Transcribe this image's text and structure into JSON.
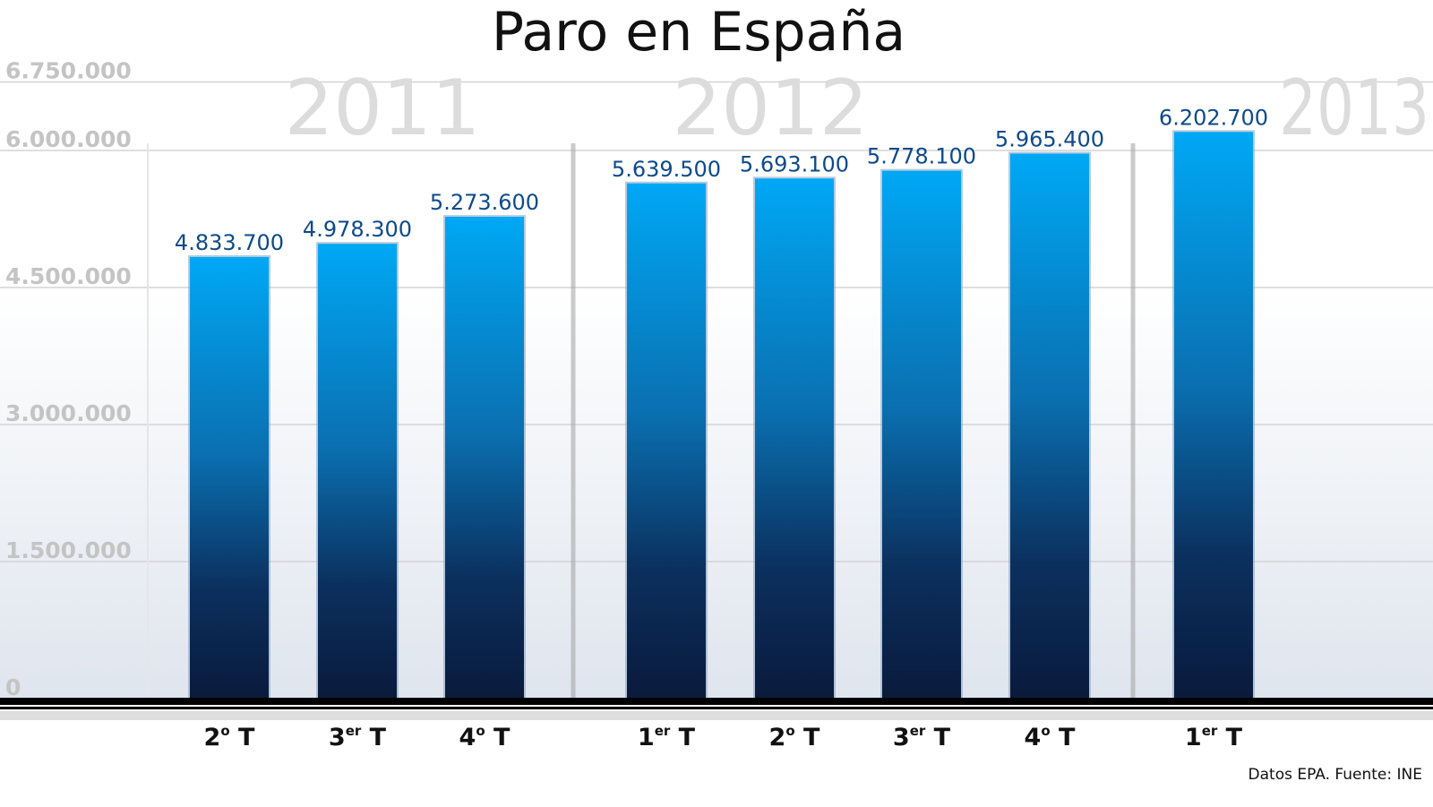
{
  "chart_data": {
    "type": "bar",
    "title": "Paro en España",
    "categories": [
      {
        "main": "2",
        "sup": "o",
        "suffix": " T"
      },
      {
        "main": "3",
        "sup": "er",
        "suffix": " T"
      },
      {
        "main": "4",
        "sup": "o",
        "suffix": " T"
      },
      {
        "main": "1",
        "sup": "er",
        "suffix": " T"
      },
      {
        "main": "2",
        "sup": "o",
        "suffix": " T"
      },
      {
        "main": "3",
        "sup": "er",
        "suffix": " T"
      },
      {
        "main": "4",
        "sup": "o",
        "suffix": " T"
      },
      {
        "main": "1",
        "sup": "er",
        "suffix": " T"
      }
    ],
    "values": [
      4833700,
      4978300,
      5273600,
      5639500,
      5693100,
      5778100,
      5965400,
      6202700
    ],
    "value_labels": [
      "4.833.700",
      "4.978.300",
      "5.273.600",
      "5.639.500",
      "5.693.100",
      "5.778.100",
      "5.965.400",
      "6.202.700"
    ],
    "year_groups": [
      {
        "label": "2011",
        "bars": [
          0,
          1,
          2
        ]
      },
      {
        "label": "2012",
        "bars": [
          3,
          4,
          5,
          6
        ]
      },
      {
        "label": "2013",
        "bars": [
          7
        ]
      }
    ],
    "yticks": [
      {
        "value": 0,
        "label": "0"
      },
      {
        "value": 1500000,
        "label": "1.500.000"
      },
      {
        "value": 3000000,
        "label": "3.000.000"
      },
      {
        "value": 4500000,
        "label": "4.500.000"
      },
      {
        "value": 6000000,
        "label": "6.000.000"
      },
      {
        "value": 6750000,
        "label": "6.750.000"
      }
    ],
    "ylim": [
      0,
      6750000
    ],
    "grid": true,
    "xlabel": "",
    "ylabel": "",
    "colors": {
      "bar_top": "#00a8f5",
      "bar_bottom": "#0a1a3c",
      "value_label": "#0d4a8a"
    },
    "source": "Datos EPA. Fuente: INE"
  }
}
